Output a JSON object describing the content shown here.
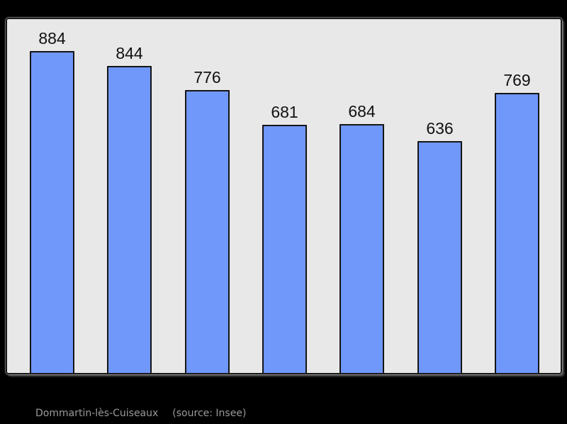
{
  "chart_data": {
    "type": "bar",
    "values": [
      884,
      844,
      776,
      681,
      684,
      636,
      769
    ],
    "bar_labels": [
      "884",
      "844",
      "776",
      "681",
      "684",
      "636",
      "769"
    ],
    "title": "",
    "xlabel": "",
    "ylabel": "",
    "ylim": [
      0,
      970
    ],
    "grid": false,
    "legend": false,
    "bar_color": "#7097fa",
    "bar_border_color": "#151515",
    "plot_bg": "#e8e8e8",
    "plot_border_color": "#1a1a1a",
    "page_bg": "#000000",
    "value_label_color": "#111111"
  },
  "footer": {
    "commune": "Dommartin-lès-Cuiseaux",
    "source_note": "(source: Insee)",
    "text_color": "#9a9a9a"
  }
}
